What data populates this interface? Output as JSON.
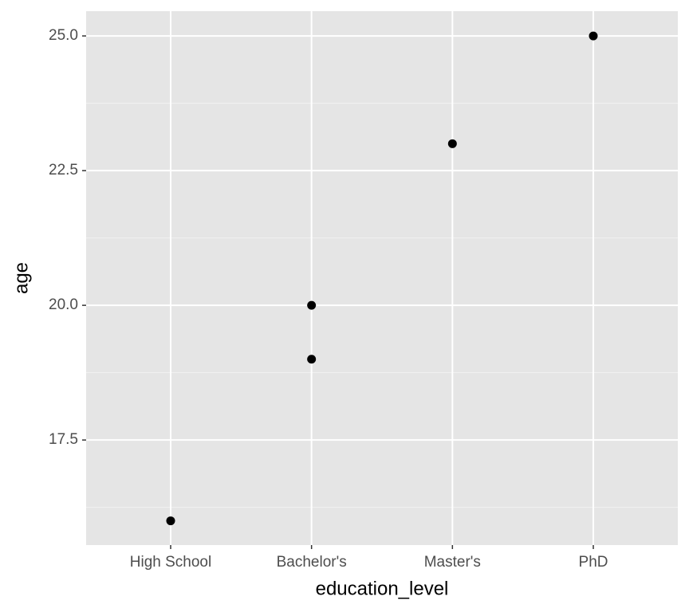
{
  "chart_data": {
    "type": "scatter",
    "x_label": "education_level",
    "y_label": "age",
    "categories": [
      "High School",
      "Bachelor's",
      "Master's",
      "PhD"
    ],
    "x": [
      "High School",
      "Bachelor's",
      "Bachelor's",
      "Master's",
      "PhD"
    ],
    "values": [
      16,
      20,
      19,
      23,
      25
    ],
    "color": "#000000",
    "ylim": [
      15.55,
      25.46
    ],
    "yticks": [
      {
        "value": 17.5,
        "label": "17.5"
      },
      {
        "value": 20,
        "label": "20.0"
      },
      {
        "value": 22.5,
        "label": "22.5"
      },
      {
        "value": 25,
        "label": "25.0"
      }
    ],
    "y_minor_ticks": [
      16.25,
      18.75,
      21.25,
      23.75
    ],
    "grid": true
  }
}
